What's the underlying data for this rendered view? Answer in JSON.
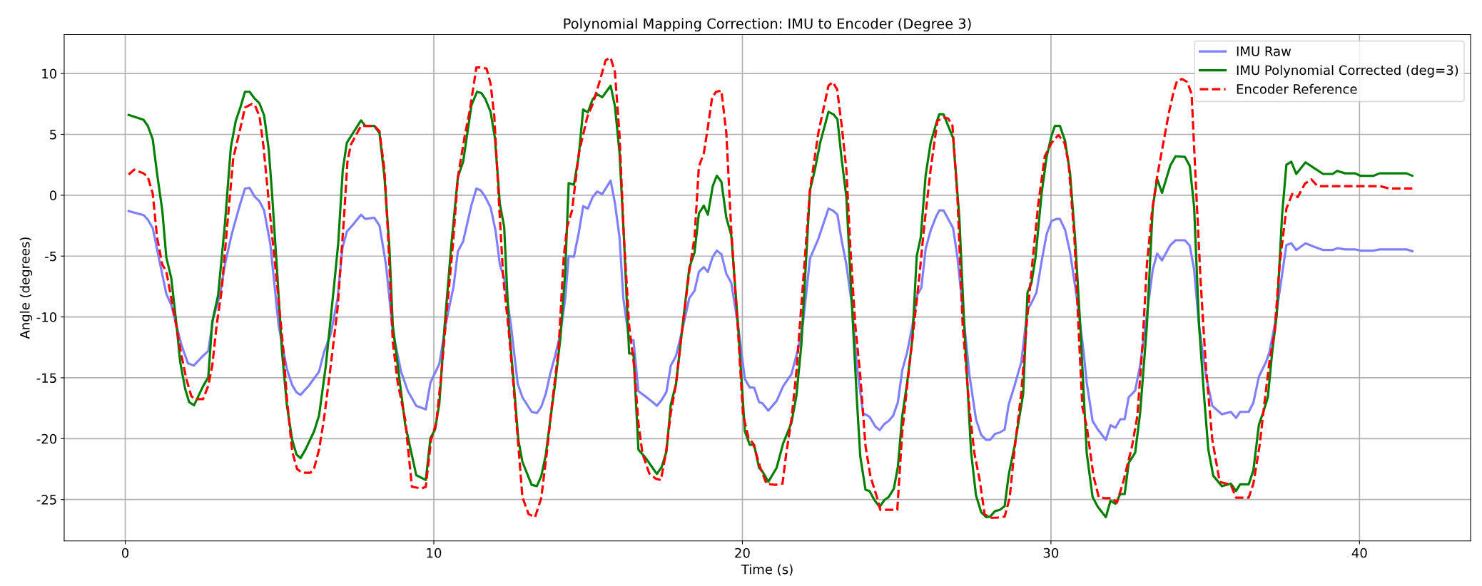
{
  "chart_data": {
    "type": "line",
    "title": "Polynomial Mapping Correction: IMU to Encoder (Degree 3)",
    "xlabel": "Time (s)",
    "ylabel": "Angle (degrees)",
    "xlim": [
      -1.98,
      43.6
    ],
    "ylim": [
      -28.4,
      13.2
    ],
    "xticks": [
      0,
      10,
      20,
      30,
      40
    ],
    "yticks": [
      -25,
      -20,
      -15,
      -10,
      -5,
      0,
      5,
      10
    ],
    "grid": true,
    "legend": "top right",
    "marker": "none",
    "series": [
      {
        "name": "IMU Raw",
        "color": "#7f7fff",
        "line_style": "solid",
        "x": [
          0.11,
          0.59,
          0.73,
          0.89,
          1.06,
          1.33,
          1.49,
          1.82,
          2.03,
          2.22,
          2.52,
          2.69,
          2.85,
          3.07,
          3.23,
          3.45,
          3.72,
          3.88,
          4.03,
          4.19,
          4.35,
          4.5,
          4.7,
          4.97,
          5.24,
          5.41,
          5.55,
          5.68,
          5.95,
          6.28,
          6.44,
          6.66,
          6.88,
          7.04,
          7.18,
          7.42,
          7.64,
          7.78,
          8.07,
          8.24,
          8.45,
          8.67,
          8.94,
          9.16,
          9.43,
          9.74,
          9.89,
          10.18,
          10.4,
          10.64,
          10.78,
          10.95,
          11.22,
          11.38,
          11.52,
          11.67,
          11.84,
          12.0,
          12.14,
          12.28,
          12.5,
          12.72,
          12.87,
          13.17,
          13.34,
          13.48,
          13.63,
          13.77,
          13.93,
          14.1,
          14.26,
          14.37,
          14.54,
          14.7,
          14.84,
          14.99,
          15.15,
          15.29,
          15.46,
          15.73,
          15.87,
          16.02,
          16.14,
          16.33,
          16.47,
          16.63,
          16.87,
          17.09,
          17.23,
          17.39,
          17.54,
          17.68,
          17.85,
          18.04,
          18.28,
          18.45,
          18.59,
          18.75,
          18.88,
          19.04,
          19.17,
          19.32,
          19.48,
          19.64,
          19.86,
          20.08,
          20.24,
          20.38,
          20.54,
          20.65,
          20.84,
          21.11,
          21.32,
          21.59,
          21.81,
          21.97,
          22.19,
          22.46,
          22.79,
          22.93,
          23.08,
          23.22,
          23.37,
          23.55,
          23.71,
          23.91,
          24.12,
          24.31,
          24.45,
          24.6,
          24.74,
          24.89,
          25.04,
          25.18,
          25.34,
          25.51,
          25.67,
          25.8,
          25.94,
          26.1,
          26.27,
          26.38,
          26.52,
          26.67,
          26.83,
          26.97,
          27.14,
          27.36,
          27.57,
          27.74,
          27.9,
          28.03,
          28.19,
          28.34,
          28.5,
          28.63,
          28.82,
          29.04,
          29.24,
          29.37,
          29.53,
          29.7,
          29.86,
          30.02,
          30.18,
          30.29,
          30.46,
          30.62,
          30.84,
          31.06,
          31.16,
          31.35,
          31.52,
          31.78,
          31.93,
          32.09,
          32.25,
          32.39,
          32.52,
          32.73,
          32.89,
          33.11,
          33.3,
          33.44,
          33.6,
          33.87,
          34.04,
          34.34,
          34.5,
          34.64,
          34.8,
          35.02,
          35.23,
          35.54,
          35.83,
          36.0,
          36.13,
          36.41,
          36.56,
          36.74,
          36.97,
          37.08,
          37.25,
          37.41,
          37.63,
          37.79,
          37.95,
          38.25,
          38.55,
          38.82,
          39.13,
          39.28,
          39.53,
          39.86,
          40.02,
          40.46,
          40.65,
          41.52,
          41.71
        ],
        "values": [
          -1.3,
          -1.63,
          -2.0,
          -2.7,
          -4.8,
          -8.1,
          -9.0,
          -12.3,
          -13.8,
          -14.0,
          -13.2,
          -12.8,
          -10.1,
          -8.2,
          -5.7,
          -3.2,
          -0.75,
          0.55,
          0.6,
          -0.1,
          -0.5,
          -1.25,
          -4.0,
          -10.7,
          -14.3,
          -15.6,
          -16.2,
          -16.4,
          -15.65,
          -14.5,
          -12.9,
          -11.4,
          -8.5,
          -4.3,
          -3.0,
          -2.3,
          -1.6,
          -1.95,
          -1.85,
          -2.5,
          -5.7,
          -11.2,
          -14.5,
          -16.1,
          -17.3,
          -17.6,
          -15.4,
          -13.85,
          -10.4,
          -7.5,
          -4.6,
          -3.8,
          -0.8,
          0.55,
          0.4,
          -0.15,
          -1.0,
          -2.9,
          -5.7,
          -6.8,
          -10.7,
          -15.5,
          -16.6,
          -17.8,
          -17.9,
          -17.4,
          -16.3,
          -14.7,
          -13.2,
          -11.4,
          -8.45,
          -5.0,
          -5.05,
          -3.05,
          -0.9,
          -1.1,
          -0.15,
          0.3,
          0.1,
          1.2,
          -0.65,
          -3.5,
          -8.45,
          -11.9,
          -11.9,
          -16.1,
          -16.55,
          -17.0,
          -17.3,
          -16.8,
          -16.15,
          -14.0,
          -13.2,
          -11.2,
          -8.45,
          -7.85,
          -6.3,
          -5.9,
          -6.3,
          -5.05,
          -4.55,
          -4.85,
          -6.45,
          -7.2,
          -10.7,
          -15.1,
          -15.8,
          -15.8,
          -17.0,
          -17.1,
          -17.7,
          -16.9,
          -15.7,
          -14.7,
          -12.6,
          -10.4,
          -5.2,
          -3.6,
          -1.1,
          -1.25,
          -1.6,
          -3.75,
          -5.7,
          -9.0,
          -14.0,
          -17.9,
          -18.2,
          -19.0,
          -19.3,
          -18.8,
          -18.55,
          -18.1,
          -17.0,
          -14.4,
          -12.9,
          -10.7,
          -8.2,
          -7.6,
          -4.4,
          -2.9,
          -1.8,
          -1.25,
          -1.25,
          -1.95,
          -2.7,
          -5.1,
          -9.3,
          -14.8,
          -18.4,
          -19.7,
          -20.1,
          -20.1,
          -19.6,
          -19.5,
          -19.25,
          -17.2,
          -15.65,
          -13.7,
          -9.4,
          -8.85,
          -8.0,
          -5.4,
          -3.2,
          -2.1,
          -1.95,
          -1.95,
          -2.85,
          -4.7,
          -8.45,
          -12.9,
          -15.4,
          -18.55,
          -19.25,
          -20.1,
          -18.9,
          -19.1,
          -18.4,
          -18.4,
          -16.6,
          -16.05,
          -14.0,
          -9.8,
          -6.1,
          -4.8,
          -5.35,
          -4.1,
          -3.7,
          -3.7,
          -4.15,
          -6.1,
          -10.7,
          -14.8,
          -17.3,
          -18.0,
          -17.8,
          -18.3,
          -17.8,
          -17.8,
          -17.05,
          -14.9,
          -13.7,
          -12.9,
          -10.7,
          -7.9,
          -4.1,
          -3.95,
          -4.5,
          -3.95,
          -4.25,
          -4.5,
          -4.5,
          -4.35,
          -4.45,
          -4.45,
          -4.55,
          -4.55,
          -4.45,
          -4.45,
          -4.6
        ]
      },
      {
        "name": "IMU Polynomial Corrected (deg=3)",
        "color": "#008000",
        "line_style": "solid",
        "x": [
          0.11,
          0.29,
          0.59,
          0.73,
          0.89,
          1.03,
          1.2,
          1.33,
          1.49,
          1.65,
          1.78,
          1.94,
          2.07,
          2.23,
          2.52,
          2.69,
          2.82,
          3.01,
          3.23,
          3.42,
          3.58,
          3.74,
          3.88,
          4.03,
          4.19,
          4.35,
          4.5,
          4.65,
          4.75,
          4.92,
          5.08,
          5.24,
          5.41,
          5.55,
          5.68,
          5.84,
          6.12,
          6.28,
          6.5,
          6.77,
          6.9,
          7.05,
          7.18,
          7.64,
          7.78,
          8.07,
          8.24,
          8.4,
          8.56,
          8.67,
          8.94,
          9.07,
          9.24,
          9.43,
          9.74,
          9.89,
          10.04,
          10.18,
          10.35,
          10.57,
          10.78,
          10.95,
          11.22,
          11.4,
          11.54,
          11.67,
          11.84,
          11.98,
          12.14,
          12.28,
          12.43,
          12.58,
          12.74,
          12.87,
          13.17,
          13.34,
          13.48,
          13.63,
          13.77,
          13.93,
          14.1,
          14.26,
          14.37,
          14.54,
          14.7,
          14.84,
          14.99,
          15.15,
          15.29,
          15.46,
          15.73,
          15.87,
          16.02,
          16.16,
          16.33,
          16.47,
          16.63,
          16.87,
          17.09,
          17.23,
          17.39,
          17.54,
          17.68,
          17.85,
          18.04,
          18.28,
          18.45,
          18.59,
          18.75,
          18.88,
          19.04,
          19.17,
          19.32,
          19.48,
          19.64,
          19.86,
          20.08,
          20.24,
          20.38,
          20.54,
          20.65,
          20.84,
          21.11,
          21.32,
          21.59,
          21.75,
          21.91,
          22.19,
          22.35,
          22.52,
          22.79,
          22.95,
          23.08,
          23.22,
          23.37,
          23.51,
          23.71,
          23.82,
          23.99,
          24.12,
          24.28,
          24.45,
          24.6,
          24.74,
          24.91,
          25.04,
          25.18,
          25.34,
          25.51,
          25.65,
          25.78,
          25.94,
          26.1,
          26.27,
          26.38,
          26.52,
          26.67,
          26.83,
          27.03,
          27.19,
          27.41,
          27.57,
          27.74,
          27.9,
          28.03,
          28.19,
          28.34,
          28.5,
          28.63,
          28.82,
          29.1,
          29.24,
          29.37,
          29.5,
          29.7,
          29.86,
          30.02,
          30.13,
          30.29,
          30.46,
          30.62,
          30.78,
          30.95,
          31.16,
          31.35,
          31.52,
          31.78,
          31.93,
          32.09,
          32.25,
          32.39,
          32.52,
          32.73,
          32.89,
          33.11,
          33.3,
          33.44,
          33.6,
          33.87,
          34.04,
          34.34,
          34.5,
          34.64,
          34.8,
          34.97,
          35.1,
          35.26,
          35.54,
          35.83,
          36.0,
          36.13,
          36.41,
          36.56,
          36.74,
          36.87,
          37.03,
          37.17,
          37.32,
          37.49,
          37.63,
          37.79,
          37.95,
          38.25,
          38.55,
          38.82,
          39.13,
          39.28,
          39.53,
          39.86,
          40.02,
          40.46,
          40.65,
          41.52,
          41.71
        ],
        "values": [
          6.6,
          6.45,
          6.2,
          5.7,
          4.6,
          1.8,
          -1.25,
          -5.1,
          -6.8,
          -10.4,
          -13.7,
          -15.9,
          -17.0,
          -17.25,
          -15.7,
          -14.95,
          -10.4,
          -8.2,
          -2.35,
          3.9,
          6.1,
          7.3,
          8.5,
          8.5,
          7.95,
          7.55,
          6.55,
          3.75,
          0.4,
          -6.2,
          -12.9,
          -17.3,
          -20.1,
          -21.3,
          -21.6,
          -20.9,
          -19.4,
          -18.1,
          -14.0,
          -7.35,
          -4.0,
          2.1,
          4.3,
          6.15,
          5.7,
          5.7,
          5.1,
          1.5,
          -4.3,
          -10.7,
          -16.2,
          -18.8,
          -20.8,
          -23.0,
          -23.4,
          -19.95,
          -19.25,
          -17.1,
          -10.7,
          -4.0,
          1.5,
          2.75,
          7.4,
          8.5,
          8.4,
          7.9,
          6.85,
          4.7,
          -0.7,
          -2.6,
          -10.7,
          -15.1,
          -20.1,
          -21.9,
          -23.8,
          -23.9,
          -23.1,
          -21.3,
          -18.55,
          -15.5,
          -11.8,
          -6.25,
          1.0,
          0.85,
          3.3,
          7.05,
          6.8,
          7.9,
          8.3,
          8.05,
          9.0,
          7.3,
          3.45,
          -3.45,
          -13.0,
          -13.0,
          -20.9,
          -21.6,
          -22.4,
          -22.9,
          -22.3,
          -21.05,
          -17.2,
          -15.5,
          -11.2,
          -5.95,
          -4.7,
          -1.5,
          -0.85,
          -1.6,
          0.75,
          1.6,
          1.1,
          -1.85,
          -3.3,
          -10.7,
          -19.4,
          -20.5,
          -20.5,
          -22.4,
          -22.7,
          -23.55,
          -22.4,
          -20.4,
          -18.7,
          -16.5,
          -12.3,
          0.4,
          2.1,
          4.3,
          6.85,
          6.65,
          6.25,
          2.9,
          -0.15,
          -7.05,
          -16.75,
          -21.45,
          -24.2,
          -24.3,
          -25.05,
          -25.6,
          -25.05,
          -24.8,
          -24.1,
          -22.3,
          -18.15,
          -15.4,
          -11.8,
          -5.0,
          -3.45,
          1.65,
          4.3,
          5.8,
          6.65,
          6.65,
          5.7,
          4.7,
          -1.8,
          -10.7,
          -21.05,
          -24.65,
          -26.05,
          -26.45,
          -26.4,
          -25.95,
          -25.85,
          -25.55,
          -23.0,
          -20.6,
          -16.35,
          -8.0,
          -7.2,
          -5.1,
          0.2,
          3.15,
          4.9,
          5.7,
          5.7,
          4.45,
          1.8,
          -3.45,
          -10.7,
          -21.2,
          -24.8,
          -25.6,
          -26.45,
          -25.1,
          -25.35,
          -24.55,
          -24.55,
          -22.0,
          -21.15,
          -17.9,
          -10.7,
          -1.0,
          1.35,
          0.2,
          2.45,
          3.2,
          3.15,
          2.4,
          -0.95,
          -10.7,
          -16.75,
          -20.9,
          -23.05,
          -23.9,
          -23.7,
          -24.3,
          -23.75,
          -23.75,
          -22.6,
          -18.85,
          -17.9,
          -16.6,
          -12.9,
          -9.8,
          -1.65,
          2.5,
          2.75,
          1.75,
          2.7,
          2.2,
          1.75,
          1.75,
          2.0,
          1.8,
          1.8,
          1.6,
          1.6,
          1.8,
          1.8,
          1.6
        ]
      },
      {
        "name": "Encoder Reference",
        "color": "#ff0000",
        "line_style": "dashed",
        "x": [
          0.11,
          0.29,
          0.59,
          0.73,
          0.89,
          1.03,
          1.2,
          1.33,
          1.49,
          1.65,
          1.82,
          1.98,
          2.14,
          2.25,
          2.52,
          2.69,
          2.82,
          2.96,
          3.12,
          3.29,
          3.5,
          3.72,
          3.88,
          4.1,
          4.2,
          4.35,
          4.48,
          4.7,
          4.92,
          5.13,
          5.24,
          5.41,
          5.57,
          5.73,
          6.0,
          6.12,
          6.28,
          6.44,
          6.66,
          6.88,
          7.09,
          7.2,
          7.31,
          7.64,
          8.07,
          8.24,
          8.4,
          8.51,
          8.67,
          8.83,
          9.07,
          9.29,
          9.6,
          9.74,
          9.91,
          10.08,
          10.24,
          10.4,
          10.62,
          10.78,
          11.0,
          11.16,
          11.38,
          11.54,
          11.71,
          11.84,
          11.96,
          12.09,
          12.25,
          12.43,
          12.58,
          12.74,
          12.87,
          13.07,
          13.28,
          13.48,
          13.66,
          13.85,
          14.04,
          14.21,
          14.32,
          14.48,
          14.7,
          14.97,
          15.15,
          15.35,
          15.57,
          15.73,
          15.87,
          16.02,
          16.16,
          16.33,
          16.49,
          16.63,
          16.76,
          16.98,
          17.2,
          17.36,
          17.52,
          17.68,
          17.85,
          18.04,
          18.28,
          18.45,
          18.59,
          18.75,
          18.88,
          19.02,
          19.15,
          19.32,
          19.48,
          19.64,
          19.86,
          20.02,
          20.2,
          20.35,
          20.57,
          20.78,
          21.05,
          21.3,
          21.42,
          21.59,
          21.75,
          21.97,
          22.19,
          22.46,
          22.79,
          22.93,
          23.07,
          23.22,
          23.37,
          23.5,
          23.66,
          23.82,
          23.99,
          24.15,
          24.36,
          24.47,
          25.02,
          25.18,
          25.34,
          25.56,
          25.72,
          25.89,
          26.1,
          26.32,
          26.52,
          26.67,
          26.81,
          26.97,
          27.14,
          27.36,
          27.52,
          27.69,
          27.85,
          28.03,
          28.23,
          28.5,
          28.66,
          28.82,
          29.04,
          29.21,
          29.37,
          29.59,
          29.8,
          30.02,
          30.24,
          30.44,
          30.57,
          30.76,
          30.89,
          31.02,
          31.16,
          31.38,
          31.55,
          31.76,
          31.98,
          32.14,
          32.36,
          32.63,
          32.8,
          32.96,
          33.11,
          33.28,
          33.44,
          33.66,
          33.82,
          33.98,
          34.09,
          34.25,
          34.42,
          34.56,
          34.69,
          34.85,
          35.02,
          35.23,
          35.47,
          35.83,
          36.0,
          36.41,
          36.56,
          36.76,
          36.92,
          37.08,
          37.25,
          37.41,
          37.63,
          37.82,
          38.0,
          38.23,
          38.44,
          38.64,
          40.67,
          40.95,
          41.71
        ],
        "values": [
          1.7,
          2.1,
          1.8,
          1.5,
          0.15,
          -3.45,
          -5.7,
          -6.25,
          -8.45,
          -10.7,
          -13.15,
          -15.1,
          -16.5,
          -16.75,
          -16.75,
          -15.65,
          -14.0,
          -10.7,
          -7.9,
          -2.9,
          3.05,
          5.4,
          7.2,
          7.5,
          7.4,
          6.5,
          4.0,
          -1.8,
          -7.35,
          -12.9,
          -16.75,
          -21.05,
          -22.5,
          -22.8,
          -22.8,
          -22.45,
          -20.9,
          -18.4,
          -14.0,
          -9.3,
          -1.8,
          2.75,
          4.15,
          5.7,
          5.7,
          5.25,
          2.05,
          -2.9,
          -12.05,
          -15.4,
          -18.4,
          -23.95,
          -24.1,
          -23.95,
          -20.1,
          -18.7,
          -14.8,
          -10.1,
          -4.0,
          1.5,
          4.85,
          6.9,
          10.5,
          10.5,
          10.4,
          9.15,
          6.5,
          0.4,
          -6.8,
          -11.2,
          -15.6,
          -20.6,
          -24.8,
          -26.2,
          -26.45,
          -24.9,
          -21.2,
          -16.75,
          -12.75,
          -5.1,
          -2.6,
          -1.25,
          3.45,
          6.4,
          7.5,
          9.15,
          11.1,
          11.3,
          10.1,
          4.85,
          -3.45,
          -10.7,
          -14.0,
          -18.7,
          -21.2,
          -22.85,
          -23.3,
          -23.4,
          -21.2,
          -17.9,
          -15.5,
          -11.2,
          -6.25,
          -3.45,
          2.35,
          3.45,
          5.55,
          8.05,
          8.5,
          8.6,
          5.1,
          -2.9,
          -11.2,
          -18.0,
          -19.95,
          -20.4,
          -22.3,
          -23.7,
          -23.8,
          -23.7,
          -21.25,
          -18.4,
          -14.55,
          -7.05,
          0.4,
          5.1,
          9.0,
          9.3,
          8.7,
          5.7,
          2.1,
          -4.3,
          -10.7,
          -14.8,
          -20.6,
          -23.1,
          -24.8,
          -25.85,
          -25.85,
          -19.5,
          -15.65,
          -10.7,
          -7.05,
          -2.6,
          2.1,
          6.1,
          6.4,
          6.3,
          5.7,
          -0.15,
          -10.7,
          -17.6,
          -21.2,
          -23.4,
          -26.2,
          -26.5,
          -26.5,
          -26.4,
          -24.9,
          -20.9,
          -16.2,
          -10.7,
          -6.25,
          -0.7,
          3.2,
          4.3,
          4.95,
          4.3,
          2.65,
          -3.45,
          -10.7,
          -17.45,
          -19.0,
          -23.1,
          -24.8,
          -24.9,
          -24.9,
          -25.25,
          -23.4,
          -20.6,
          -18.15,
          -12.6,
          -5.7,
          -1.25,
          1.5,
          4.55,
          6.75,
          8.55,
          9.4,
          9.55,
          9.3,
          8.3,
          1.25,
          -7.05,
          -14.0,
          -20.1,
          -23.55,
          -23.8,
          -24.85,
          -24.85,
          -23.7,
          -20.6,
          -17.05,
          -13.7,
          -11.2,
          -5.7,
          -1.1,
          0.1,
          -0.15,
          0.95,
          1.3,
          0.75,
          0.75,
          0.55,
          0.55
        ]
      }
    ]
  }
}
